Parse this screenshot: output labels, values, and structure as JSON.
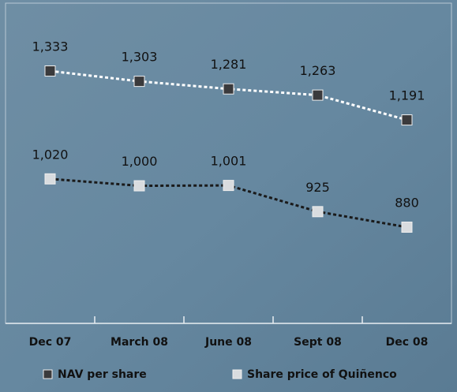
{
  "chart_data": {
    "type": "line",
    "categories": [
      "Dec 07",
      "March 08",
      "June 08",
      "Sept 08",
      "Dec 08"
    ],
    "series": [
      {
        "name": "NAV per share",
        "color": "#3a3a3c",
        "line_color": "#ffffff",
        "values": [
          1333,
          1303,
          1281,
          1263,
          1191
        ],
        "value_labels": [
          "1,333",
          "1,303",
          "1,281",
          "1,263",
          "1,191"
        ]
      },
      {
        "name": "Share price of Quiñenco",
        "color": "#d9dcdf",
        "line_color": "#1a1a1a",
        "values": [
          1020,
          1000,
          1001,
          925,
          880
        ],
        "value_labels": [
          "1,020",
          "1,000",
          "1,001",
          "925",
          "880"
        ]
      }
    ]
  }
}
